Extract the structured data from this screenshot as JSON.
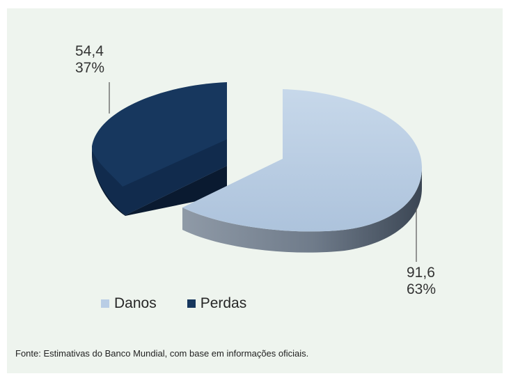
{
  "chart_data": {
    "type": "pie",
    "style": "3d-exploded",
    "categories": [
      "Danos",
      "Perdas"
    ],
    "values": [
      91.6,
      54.4
    ],
    "percent_labels": [
      "63%",
      "37%"
    ],
    "value_labels": [
      "91,6",
      "54,4"
    ],
    "colors": [
      "#b9cde5",
      "#17375e"
    ],
    "legend": {
      "position": "bottom",
      "entries": [
        "Danos",
        "Perdas"
      ]
    }
  },
  "source_note": "Fonte: Estimativas do Banco Mundial, com base em informações oficiais."
}
